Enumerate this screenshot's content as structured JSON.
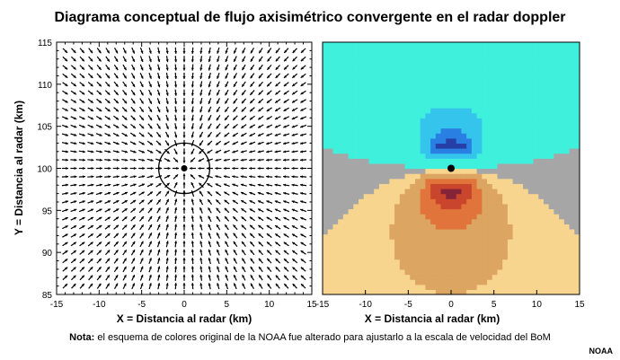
{
  "title": "Diagrama conceptual de flujo axisimétrico convergente en el radar doppler",
  "note": {
    "label": "Nota:",
    "text": "el esquema de colores original de la NOAA fue alterado para ajustarlo a la escala de velocidad del BoM"
  },
  "credit": "NOAA",
  "chart_data": [
    {
      "type": "vector-field",
      "xlabel": "X = Distancia al radar (km)",
      "ylabel": "Y = Distancia al radar (km)",
      "xlim": [
        -15,
        15
      ],
      "ylim": [
        85,
        115
      ],
      "xticks": [
        "-15",
        "-10",
        "-5",
        "0",
        "5",
        "10",
        "15"
      ],
      "yticks": [
        "85",
        "90",
        "95",
        "100",
        "105",
        "110",
        "115"
      ],
      "center": [
        0,
        100
      ],
      "circle_radius_km": 3,
      "flow": "convergent",
      "grid_spacing_km": 1
    },
    {
      "type": "heatmap",
      "xlabel": "X = Distancia al radar (km)",
      "xlim": [
        -15,
        15
      ],
      "ylim": [
        85,
        115
      ],
      "xticks": [
        "-15",
        "-10",
        "-5",
        "0",
        "5",
        "10",
        "15"
      ],
      "radar_point": [
        0,
        100
      ],
      "colors": {
        "light_yellow": "#f8d58f",
        "tan": "#dca562",
        "orange": "#e0743a",
        "red_orange": "#c9452c",
        "dark_red": "#842436",
        "gray": "#a6a6a6",
        "light_cyan": "#3ff0dc",
        "cyan": "#35c5ec",
        "blue": "#2a7fe2",
        "dark_blue": "#2640a8"
      }
    }
  ]
}
